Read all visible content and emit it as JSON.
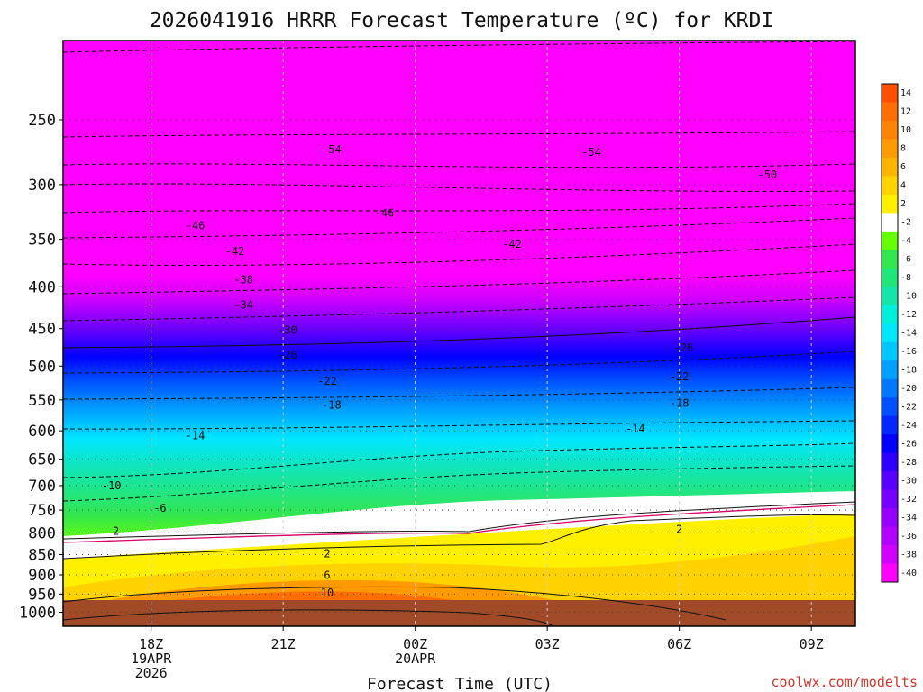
{
  "chart_data": {
    "type": "heatmap",
    "title": "2026041916 HRRR Forecast Temperature (ºC) for KRDI",
    "xlabel": "Forecast Time (UTC)",
    "ylabel": "",
    "credit": "coolwx.com/modelts",
    "x_ticks": [
      {
        "hour": 18,
        "lines": [
          "18Z",
          "19APR",
          "2026"
        ]
      },
      {
        "hour": 21,
        "lines": [
          "21Z"
        ]
      },
      {
        "hour": 24,
        "lines": [
          "00Z",
          "20APR"
        ]
      },
      {
        "hour": 27,
        "lines": [
          "03Z"
        ]
      },
      {
        "hour": 30,
        "lines": [
          "06Z"
        ]
      },
      {
        "hour": 33,
        "lines": [
          "09Z"
        ]
      }
    ],
    "xlim": [
      16.0,
      34.0
    ],
    "y_ticks": [
      "250",
      "300",
      "350",
      "400",
      "450",
      "500",
      "550",
      "600",
      "650",
      "700",
      "750",
      "800",
      "850",
      "900",
      "950",
      "1000"
    ],
    "ylim_hpa": [
      200,
      1040
    ],
    "colorbar_labels": [
      "14",
      "12",
      "10",
      "8",
      "6",
      "4",
      "2",
      "-2",
      "-4",
      "-6",
      "-8",
      "-10",
      "-12",
      "-14",
      "-16",
      "-18",
      "-20",
      "-22",
      "-24",
      "-26",
      "-28",
      "-30",
      "-32",
      "-34",
      "-36",
      "-38",
      "-40"
    ],
    "colorbar_colors": [
      "#ff5000",
      "#ff6e00",
      "#ff8200",
      "#ff9b00",
      "#ffb400",
      "#ffd200",
      "#fff000",
      "#ffffff",
      "#64ff00",
      "#32e650",
      "#1ee678",
      "#14e6aa",
      "#00f0dc",
      "#00e6ff",
      "#00c8ff",
      "#00a0ff",
      "#0078ff",
      "#0050ff",
      "#0028ff",
      "#0000ff",
      "#2d00ff",
      "#5a00ff",
      "#7800ff",
      "#9600ff",
      "#b400ff",
      "#d200ff",
      "#ff00ff"
    ],
    "contour_labels": [
      {
        "text": "-54",
        "hour": 22.1,
        "p": 272
      },
      {
        "text": "-54",
        "hour": 28.0,
        "p": 274
      },
      {
        "text": "-50",
        "hour": 32.0,
        "p": 292
      },
      {
        "text": "-46",
        "hour": 19.0,
        "p": 337
      },
      {
        "text": "-46",
        "hour": 23.3,
        "p": 325
      },
      {
        "text": "-42",
        "hour": 19.9,
        "p": 362
      },
      {
        "text": "-42",
        "hour": 26.2,
        "p": 355
      },
      {
        "text": "-38",
        "hour": 20.1,
        "p": 392
      },
      {
        "text": "-34",
        "hour": 20.1,
        "p": 421
      },
      {
        "text": "-30",
        "hour": 21.1,
        "p": 452
      },
      {
        "text": "-26",
        "hour": 21.1,
        "p": 485
      },
      {
        "text": "-26",
        "hour": 30.1,
        "p": 475
      },
      {
        "text": "-22",
        "hour": 22.0,
        "p": 522
      },
      {
        "text": "-22",
        "hour": 30.0,
        "p": 515
      },
      {
        "text": "-18",
        "hour": 22.1,
        "p": 558
      },
      {
        "text": "-18",
        "hour": 30.0,
        "p": 555
      },
      {
        "text": "-14",
        "hour": 19.0,
        "p": 608
      },
      {
        "text": "-14",
        "hour": 29.0,
        "p": 597
      },
      {
        "text": "-10",
        "hour": 17.1,
        "p": 700
      },
      {
        "text": "-6",
        "hour": 18.2,
        "p": 746
      },
      {
        "text": "2",
        "hour": 17.2,
        "p": 796
      },
      {
        "text": "2",
        "hour": 22.0,
        "p": 848
      },
      {
        "text": "2",
        "hour": 30.0,
        "p": 792
      },
      {
        "text": "6",
        "hour": 22.0,
        "p": 901
      },
      {
        "text": "10",
        "hour": 22.0,
        "p": 947
      }
    ]
  }
}
